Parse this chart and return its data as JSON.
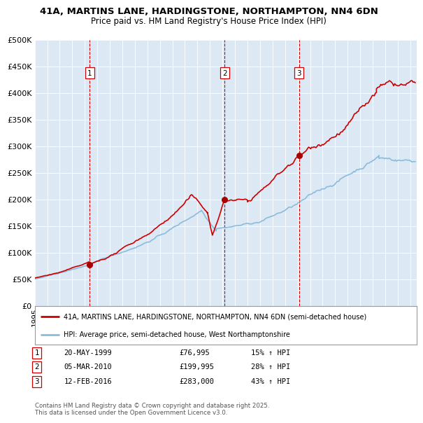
{
  "title": "41A, MARTINS LANE, HARDINGSTONE, NORTHAMPTON, NN4 6DN",
  "subtitle": "Price paid vs. HM Land Registry's House Price Index (HPI)",
  "bg_color": "#dce9f5",
  "red_line_color": "#cc0000",
  "blue_line_color": "#8bbcdb",
  "transaction_marker_color": "#aa0000",
  "dashed_line_color": "#cc0000",
  "ylim": [
    0,
    500000
  ],
  "yticks": [
    0,
    50000,
    100000,
    150000,
    200000,
    250000,
    300000,
    350000,
    400000,
    450000,
    500000
  ],
  "transactions": [
    {
      "date_num": 1999.38,
      "price": 76995,
      "label": "1"
    },
    {
      "date_num": 2010.17,
      "price": 199995,
      "label": "2"
    },
    {
      "date_num": 2016.11,
      "price": 283000,
      "label": "3"
    }
  ],
  "legend_entries": [
    "41A, MARTINS LANE, HARDINGSTONE, NORTHAMPTON, NN4 6DN (semi-detached house)",
    "HPI: Average price, semi-detached house, West Northamptonshire"
  ],
  "table_rows": [
    {
      "num": "1",
      "date": "20-MAY-1999",
      "price": "£76,995",
      "hpi": "15% ↑ HPI"
    },
    {
      "num": "2",
      "date": "05-MAR-2010",
      "price": "£199,995",
      "hpi": "28% ↑ HPI"
    },
    {
      "num": "3",
      "date": "12-FEB-2016",
      "price": "£283,000",
      "hpi": "43% ↑ HPI"
    }
  ],
  "footer": "Contains HM Land Registry data © Crown copyright and database right 2025.\nThis data is licensed under the Open Government Licence v3.0.",
  "xmin": 1995.0,
  "xmax": 2025.5
}
